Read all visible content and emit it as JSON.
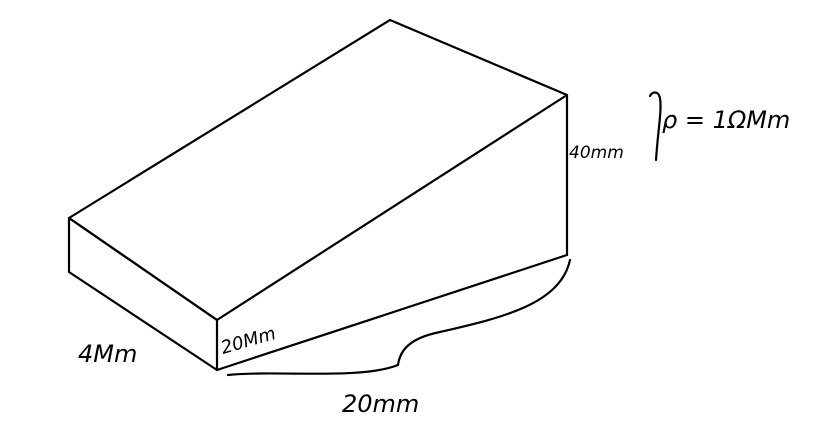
{
  "labels": {
    "depth": "4Mm",
    "front_height": "20Mm",
    "back_height": "40mm",
    "length": "20mm",
    "resistivity": "ρ = 1ΩMm"
  },
  "colors": {
    "ink": "#000000",
    "background": "#ffffff"
  }
}
